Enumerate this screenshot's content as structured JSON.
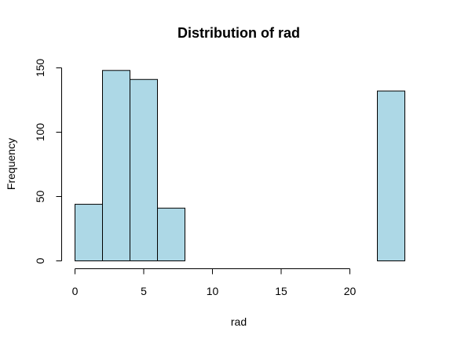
{
  "chart_data": {
    "type": "bar",
    "title": "Distribution of rad",
    "xlabel": "rad",
    "ylabel": "Frequency",
    "bin_edges": [
      0,
      2,
      4,
      6,
      8,
      10,
      12,
      14,
      16,
      18,
      20,
      22,
      24
    ],
    "values": [
      44,
      148,
      141,
      41,
      0,
      0,
      0,
      0,
      0,
      0,
      0,
      132
    ],
    "xlim": [
      0,
      24
    ],
    "ylim": [
      0,
      150
    ],
    "x_ticks": [
      0,
      5,
      10,
      15,
      20
    ],
    "y_ticks": [
      0,
      50,
      100,
      150
    ],
    "bar_color": "#ADD8E6",
    "edge_color": "#000000",
    "grid": false,
    "legend": "none"
  }
}
